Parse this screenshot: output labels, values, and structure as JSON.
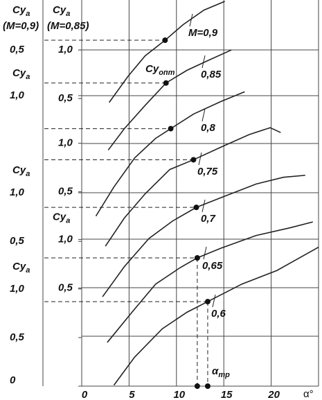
{
  "chart_data": {
    "type": "line",
    "xlabel": "α°",
    "xlim": [
      0,
      25
    ],
    "xticks": [
      0,
      5,
      10,
      15,
      20
    ],
    "color": "#222222",
    "optimum_label": {
      "text": "Cy",
      "sub": "опт"
    },
    "alpha_label": {
      "text": "α",
      "sub": "тр"
    },
    "panels": [
      {
        "name": "M=0,9",
        "ylabel": {
          "text": "Cy",
          "sub": "a",
          "note": "(M=0,9)"
        },
        "ylim": [
          -2.96,
          1.0
        ],
        "yticks": [
          {
            "value": 0.5,
            "label": "0,5"
          }
        ],
        "x": [
          2.9,
          4.9,
          6.7,
          8.8,
          10.7,
          12.9,
          15.1
        ],
        "values": [
          -0.04,
          0.23,
          0.44,
          0.6,
          0.76,
          0.91,
          1.0
        ],
        "optimum": {
          "x": 8.8,
          "value": 0.6
        }
      },
      {
        "name": "0,85",
        "ylabel": {
          "text": "Cy",
          "sub": "a",
          "note": "(M=0,85)"
        },
        "ylim": [
          -2.46,
          1.5
        ],
        "yticks": [
          {
            "value": 1.0,
            "label": "1,0"
          },
          {
            "value": 0.5,
            "label": "0,5"
          }
        ],
        "x": [
          2.8,
          4.5,
          6.7,
          8.9,
          11.1,
          13.3,
          15.8
        ],
        "values": [
          -0.03,
          0.19,
          0.43,
          0.66,
          0.79,
          0.89,
          1.0
        ],
        "optimum": {
          "x": 8.9,
          "value": 0.66
        }
      },
      {
        "name": "0,8",
        "ylabel": {
          "text": "Cy",
          "sub": "a"
        },
        "ylim": [
          -1.99,
          1.97
        ],
        "yticks": [
          {
            "value": 1.0,
            "label": "1,0"
          }
        ],
        "x": [
          1.5,
          3.4,
          5.6,
          7.8,
          9.4,
          11.8,
          14.7,
          17.2
        ],
        "values": [
          -0.24,
          0.06,
          0.36,
          0.56,
          0.66,
          0.81,
          0.94,
          1.04
        ],
        "optimum": {
          "x": 9.4,
          "value": 0.66
        }
      },
      {
        "name": "0,75",
        "ylim": [
          -1.5,
          2.46
        ],
        "yticks": [
          {
            "value": 1.0,
            "label": "1,0"
          },
          {
            "value": 0.5,
            "label": "0,5"
          }
        ],
        "x": [
          2.5,
          4.5,
          6.7,
          9.3,
          11.8,
          14.7,
          17.7,
          19.9,
          21.0
        ],
        "values": [
          -0.06,
          0.23,
          0.48,
          0.73,
          0.83,
          0.96,
          1.09,
          1.16,
          1.11
        ],
        "optimum": {
          "x": 11.8,
          "value": 0.83
        }
      },
      {
        "name": "0,7",
        "ylabel": {
          "text": "Cy",
          "sub": "a"
        },
        "ylim": [
          -0.99,
          2.97
        ],
        "yticks": [
          {
            "value": 1.0,
            "label": "1,0"
          },
          {
            "value": 0.5,
            "label": "0,5"
          }
        ],
        "x": [
          2.2,
          4.5,
          7.1,
          9.6,
          12.1,
          14.7,
          18.4,
          21.3,
          23.6
        ],
        "values": [
          -0.07,
          0.24,
          0.53,
          0.71,
          0.85,
          0.95,
          1.09,
          1.16,
          1.18
        ],
        "optimum": {
          "x": 12.1,
          "value": 0.85
        }
      },
      {
        "name": "0,65",
        "ylabel": {
          "text": "Cy",
          "sub": "a"
        },
        "ylim": [
          -0.51,
          3.45
        ],
        "yticks": [
          {
            "value": 1.0,
            "label": "1,0"
          },
          {
            "value": 0.5,
            "label": "0,5"
          }
        ],
        "x": [
          2.7,
          5.3,
          7.8,
          10.4,
          12.2,
          14.7,
          18.4,
          22.0,
          24.4
        ],
        "values": [
          -0.06,
          0.25,
          0.54,
          0.71,
          0.81,
          0.91,
          1.04,
          1.12,
          1.18
        ],
        "optimum": {
          "x": 12.2,
          "value": 0.81
        }
      },
      {
        "name": "0,6",
        "ylabel": {
          "text": "Cy",
          "sub": "a"
        },
        "ylim": [
          0,
          3.96
        ],
        "yticks": [
          0,
          {
            "value": 1.0,
            "label": "1,0"
          },
          {
            "value": 0.5,
            "label": "0,5"
          }
        ],
        "x": [
          3.4,
          5.6,
          8.5,
          11.1,
          13.3,
          16.9,
          20.6,
          25.0
        ],
        "values": [
          0.01,
          0.3,
          0.59,
          0.76,
          0.87,
          1.05,
          1.19,
          1.43
        ],
        "optimum": {
          "x": 13.3,
          "value": 0.87
        }
      }
    ]
  }
}
